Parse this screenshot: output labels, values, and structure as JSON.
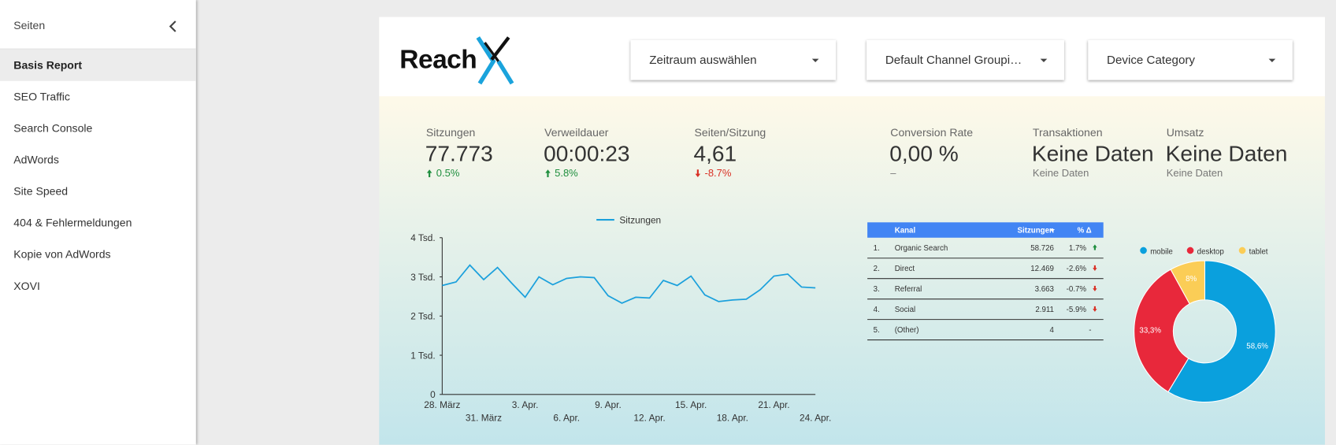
{
  "sidebar": {
    "title": "Seiten",
    "items": [
      "Basis Report",
      "SEO Traffic",
      "Search Console",
      "AdWords",
      "Site Speed",
      "404 & Fehlermeldungen",
      "Kopie von AdWords",
      "XOVI"
    ]
  },
  "header": {
    "logo": "Reach",
    "filters": [
      "Zeitraum auswählen",
      "Default Channel Groupi…",
      "Device Category"
    ]
  },
  "scorecards": [
    {
      "label": "Sitzungen",
      "value": "77.773",
      "delta": "0.5%",
      "trend": "up"
    },
    {
      "label": "Verweildauer",
      "value": "00:00:23",
      "delta": "5.8%",
      "trend": "up"
    },
    {
      "label": "Seiten/Sitzung",
      "value": "4,61",
      "delta": "-8.7%",
      "trend": "down"
    },
    {
      "label": "Conversion Rate",
      "value": "0,00 %",
      "delta": "–"
    },
    {
      "label": "Transaktionen",
      "value": "Keine Daten",
      "delta": "Keine Daten"
    },
    {
      "label": "Umsatz",
      "value": "Keine Daten",
      "delta": "Keine Daten"
    }
  ],
  "table": {
    "columns": [
      "Kanal",
      "Sitzungen",
      "% Δ"
    ],
    "rows": [
      [
        "1.",
        "Organic Search",
        "58.726",
        "1.7%"
      ],
      [
        "2.",
        "Direct",
        "12.469",
        "-2.6%"
      ],
      [
        "3.",
        "Referral",
        "3.663",
        "-0.7%"
      ],
      [
        "4.",
        "Social",
        "2.911",
        "-5.9%"
      ],
      [
        "5.",
        "(Other)",
        "4",
        "-"
      ]
    ],
    "trends": [
      "up",
      "down",
      "down",
      "down",
      null
    ]
  },
  "chart_data": [
    {
      "type": "line",
      "categories": [
        "28. März",
        null,
        null,
        "31. März",
        null,
        null,
        "3. Apr.",
        null,
        null,
        "6. Apr.",
        null,
        null,
        "9. Apr.",
        null,
        null,
        "12. Apr.",
        null,
        null,
        "15. Apr.",
        null,
        null,
        "18. Apr.",
        null,
        null,
        "21. Apr.",
        null,
        null,
        "24. Apr."
      ],
      "series": [
        {
          "name": "Sitzungen",
          "color": "#1ba0dc",
          "values": [
            2780,
            2870,
            3300,
            2930,
            3240,
            2850,
            2480,
            3000,
            2800,
            2960,
            3000,
            2980,
            2520,
            2330,
            2480,
            2460,
            2910,
            2780,
            3020,
            2540,
            2370,
            2410,
            2430,
            2670,
            3020,
            3070,
            2740,
            2720
          ]
        }
      ],
      "ylim": [
        0,
        4000
      ],
      "yticks": [
        0,
        {
          "value": 1000,
          "label": "1 Tsd."
        },
        {
          "value": 2000,
          "label": "2 Tsd."
        },
        {
          "value": 3000,
          "label": "3 Tsd."
        },
        {
          "value": 4000,
          "label": "4 Tsd."
        }
      ],
      "grid": false
    },
    {
      "type": "pie",
      "categories": [
        "mobile",
        "desktop",
        "tablet"
      ],
      "values": [
        58.6,
        33.3,
        8
      ],
      "value_labels": [
        "58,6%",
        "33,3%",
        "8%"
      ],
      "colors": [
        "#0aa0dd",
        "#e8283b",
        "#fbcd56"
      ],
      "donut": true
    }
  ]
}
